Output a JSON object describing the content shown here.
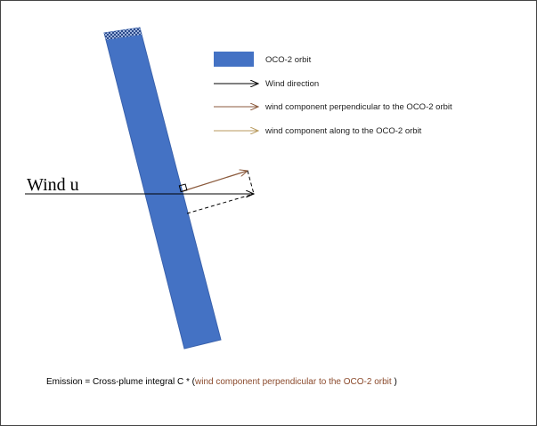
{
  "legend": [
    {
      "label": "OCO-2 orbit"
    },
    {
      "label": "Wind direction"
    },
    {
      "label": "wind component perpendicular to the OCO-2 orbit"
    },
    {
      "label": "wind component along to the OCO-2 orbit"
    }
  ],
  "wind_label": "Wind u",
  "formula": {
    "prefix": "Emission = Cross-plume integral C * (",
    "highlight": "wind component perpendicular to the OCO-2 orbit",
    "suffix": " )"
  }
}
